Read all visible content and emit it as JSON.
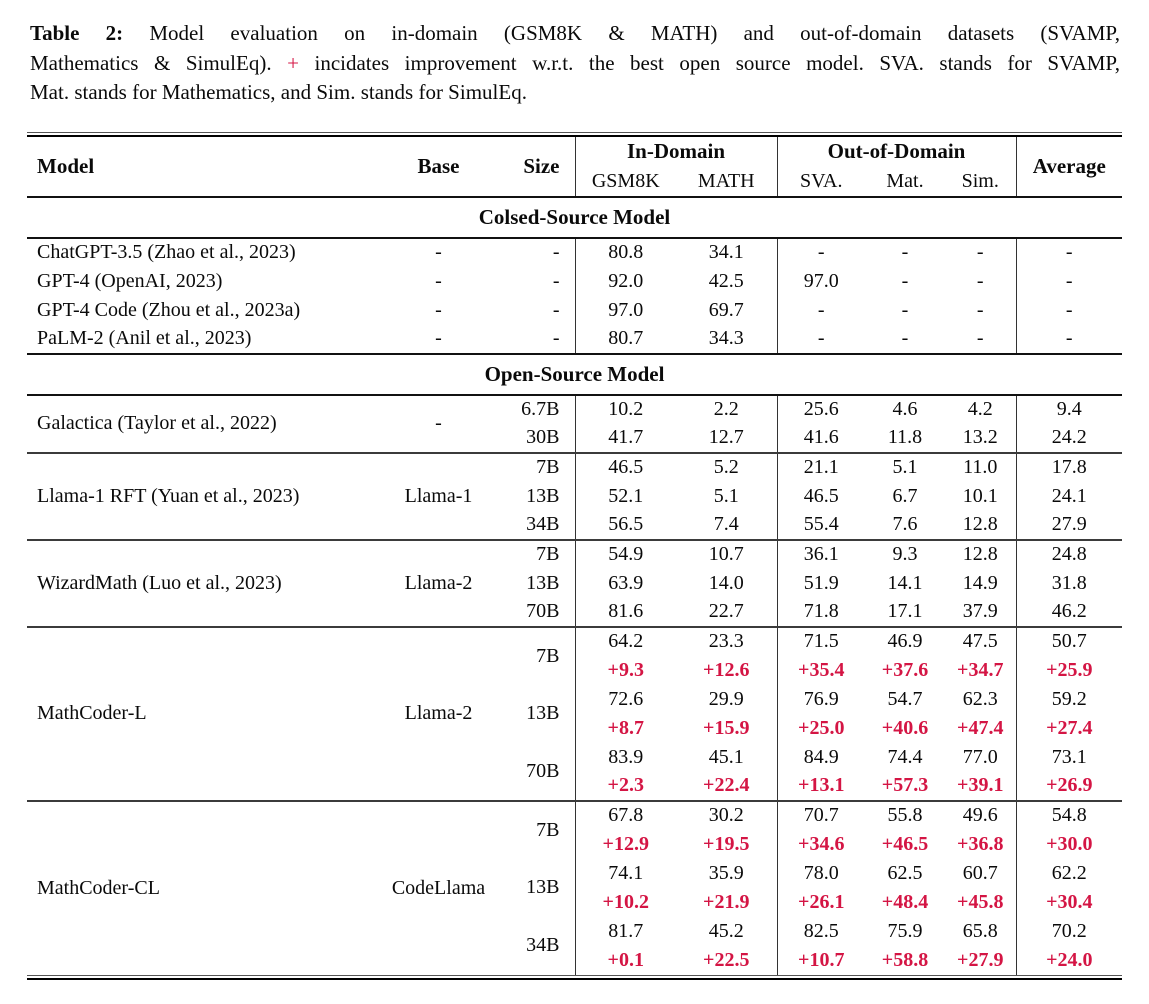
{
  "colors": {
    "accent_red": "#d41544",
    "text": "#0a0a0a",
    "rule": "#000000"
  },
  "caption": {
    "label": "Table 2:",
    "line1_rest": "Model evaluation on in-domain (GSM8K & MATH) and out-of-domain datasets (SVAMP,",
    "line2_pre": "Mathematics & SimulEq).",
    "plus_sign": "+",
    "line2_post": "incidates improvement w.r.t. the best open source model. SVA. stands for SVAMP,",
    "line3": "Mat. stands for Mathematics, and Sim. stands for SimulEq."
  },
  "table": {
    "header": {
      "model": "Model",
      "base": "Base",
      "size": "Size",
      "in_domain": "In-Domain",
      "out_of_domain": "Out-of-Domain",
      "gsm8k": "GSM8K",
      "math": "MATH",
      "sva": "SVA.",
      "mat": "Mat.",
      "sim": "Sim.",
      "average": "Average"
    },
    "sections": [
      {
        "title": "Colsed-Source Model",
        "blocks": [
          {
            "model": "ChatGPT-3.5 (Zhao et al., 2023)",
            "base": "-",
            "rows": [
              {
                "size": "-",
                "vals": [
                  "80.8",
                  "34.1",
                  "-",
                  "-",
                  "-",
                  "-"
                ]
              }
            ]
          },
          {
            "model": "GPT-4 (OpenAI, 2023)",
            "base": "-",
            "rows": [
              {
                "size": "-",
                "vals": [
                  "92.0",
                  "42.5",
                  "97.0",
                  "-",
                  "-",
                  "-"
                ]
              }
            ]
          },
          {
            "model": "GPT-4 Code (Zhou et al., 2023a)",
            "base": "-",
            "rows": [
              {
                "size": "-",
                "vals": [
                  "97.0",
                  "69.7",
                  "-",
                  "-",
                  "-",
                  "-"
                ]
              }
            ]
          },
          {
            "model": "PaLM-2 (Anil et al., 2023)",
            "base": "-",
            "rows": [
              {
                "size": "-",
                "vals": [
                  "80.7",
                  "34.3",
                  "-",
                  "-",
                  "-",
                  "-"
                ]
              }
            ]
          }
        ]
      },
      {
        "title": "Open-Source Model",
        "blocks": [
          {
            "model": "Galactica (Taylor et al., 2022)",
            "base": "-",
            "rows": [
              {
                "size": "6.7B",
                "vals": [
                  "10.2",
                  "2.2",
                  "25.6",
                  "4.6",
                  "4.2",
                  "9.4"
                ]
              },
              {
                "size": "30B",
                "vals": [
                  "41.7",
                  "12.7",
                  "41.6",
                  "11.8",
                  "13.2",
                  "24.2"
                ]
              }
            ]
          },
          {
            "model": "Llama-1 RFT (Yuan et al., 2023)",
            "base": "Llama-1",
            "rows": [
              {
                "size": "7B",
                "vals": [
                  "46.5",
                  "5.2",
                  "21.1",
                  "5.1",
                  "11.0",
                  "17.8"
                ]
              },
              {
                "size": "13B",
                "vals": [
                  "52.1",
                  "5.1",
                  "46.5",
                  "6.7",
                  "10.1",
                  "24.1"
                ]
              },
              {
                "size": "34B",
                "vals": [
                  "56.5",
                  "7.4",
                  "55.4",
                  "7.6",
                  "12.8",
                  "27.9"
                ]
              }
            ]
          },
          {
            "model": "WizardMath (Luo et al., 2023)",
            "base": "Llama-2",
            "rows": [
              {
                "size": "7B",
                "vals": [
                  "54.9",
                  "10.7",
                  "36.1",
                  "9.3",
                  "12.8",
                  "24.8"
                ]
              },
              {
                "size": "13B",
                "vals": [
                  "63.9",
                  "14.0",
                  "51.9",
                  "14.1",
                  "14.9",
                  "31.8"
                ]
              },
              {
                "size": "70B",
                "vals": [
                  "81.6",
                  "22.7",
                  "71.8",
                  "17.1",
                  "37.9",
                  "46.2"
                ]
              }
            ]
          },
          {
            "model": "MathCoder-L",
            "base": "Llama-2",
            "rows": [
              {
                "size": "7B",
                "vals": [
                  "64.2",
                  "23.3",
                  "71.5",
                  "46.9",
                  "47.5",
                  "50.7"
                ],
                "improve": [
                  "+9.3",
                  "+12.6",
                  "+35.4",
                  "+37.6",
                  "+34.7",
                  "+25.9"
                ]
              },
              {
                "size": "13B",
                "vals": [
                  "72.6",
                  "29.9",
                  "76.9",
                  "54.7",
                  "62.3",
                  "59.2"
                ],
                "improve": [
                  "+8.7",
                  "+15.9",
                  "+25.0",
                  "+40.6",
                  "+47.4",
                  "+27.4"
                ]
              },
              {
                "size": "70B",
                "vals": [
                  "83.9",
                  "45.1",
                  "84.9",
                  "74.4",
                  "77.0",
                  "73.1"
                ],
                "improve": [
                  "+2.3",
                  "+22.4",
                  "+13.1",
                  "+57.3",
                  "+39.1",
                  "+26.9"
                ]
              }
            ]
          },
          {
            "model": "MathCoder-CL",
            "base": "CodeLlama",
            "rows": [
              {
                "size": "7B",
                "vals": [
                  "67.8",
                  "30.2",
                  "70.7",
                  "55.8",
                  "49.6",
                  "54.8"
                ],
                "improve": [
                  "+12.9",
                  "+19.5",
                  "+34.6",
                  "+46.5",
                  "+36.8",
                  "+30.0"
                ]
              },
              {
                "size": "13B",
                "vals": [
                  "74.1",
                  "35.9",
                  "78.0",
                  "62.5",
                  "60.7",
                  "62.2"
                ],
                "improve": [
                  "+10.2",
                  "+21.9",
                  "+26.1",
                  "+48.4",
                  "+45.8",
                  "+30.4"
                ]
              },
              {
                "size": "34B",
                "vals": [
                  "81.7",
                  "45.2",
                  "82.5",
                  "75.9",
                  "65.8",
                  "70.2"
                ],
                "improve": [
                  "+0.1",
                  "+22.5",
                  "+10.7",
                  "+58.8",
                  "+27.9",
                  "+24.0"
                ]
              }
            ]
          }
        ]
      }
    ]
  }
}
